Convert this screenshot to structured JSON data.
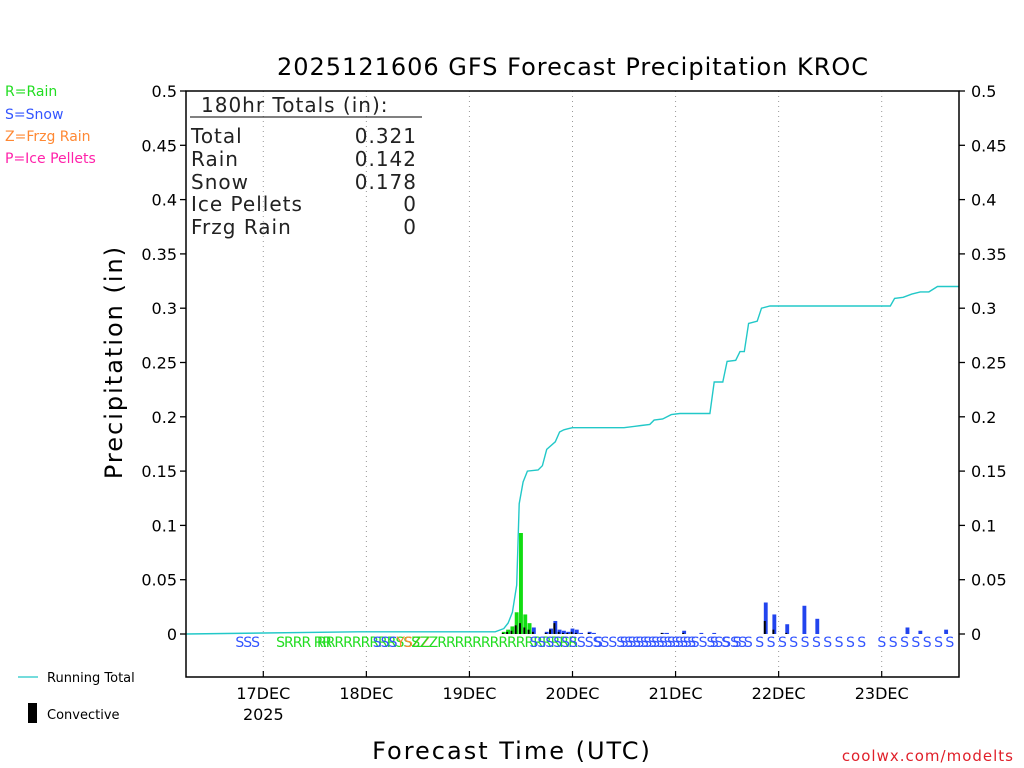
{
  "chart_data": {
    "type": "bar",
    "title": "2025121606 GFS Forecast Precipitation KROC",
    "xlabel": "Forecast Time (UTC)",
    "ylabel": "Precipitation (in)",
    "ylim": [
      0,
      0.5
    ],
    "yticks": [
      "0",
      "0.05",
      "0.1",
      "0.15",
      "0.2",
      "0.25",
      "0.3",
      "0.35",
      "0.4",
      "0.45",
      "0.5"
    ],
    "xlim_hours": [
      0,
      180
    ],
    "xticks": [
      {
        "hour": 18,
        "label": "17DEC",
        "sub": "2025"
      },
      {
        "hour": 42,
        "label": "18DEC",
        "sub": ""
      },
      {
        "hour": 66,
        "label": "19DEC",
        "sub": ""
      },
      {
        "hour": 90,
        "label": "20DEC",
        "sub": ""
      },
      {
        "hour": 114,
        "label": "21DEC",
        "sub": ""
      },
      {
        "hour": 138,
        "label": "22DEC",
        "sub": ""
      },
      {
        "hour": 162,
        "label": "23DEC",
        "sub": ""
      }
    ],
    "ptype_legend": [
      {
        "code": "R",
        "text": "R=Rain",
        "color": "#22dd22"
      },
      {
        "code": "S",
        "text": "S=Snow",
        "color": "#3355ff"
      },
      {
        "code": "Z",
        "text": "Z=Frzg Rain",
        "color": "#ff8833"
      },
      {
        "code": "P",
        "text": "P=Ice Pellets",
        "color": "#ff22aa"
      }
    ],
    "totals": {
      "heading": "180hr Totals (in):",
      "rows": [
        {
          "label": "Total",
          "value": "0.321"
        },
        {
          "label": "Rain",
          "value": "0.142"
        },
        {
          "label": "Snow",
          "value": "0.178"
        },
        {
          "label": "Ice Pellets",
          "value": "0"
        },
        {
          "label": "Frzg Rain",
          "value": "0"
        }
      ]
    },
    "legend": {
      "running": "Running Total",
      "convective": "Convective"
    },
    "credit": "coolwx.com/modelts",
    "colors": {
      "rain": "#11dd11",
      "snow": "#2244ee",
      "convective": "#000000",
      "running": "#22c8c8",
      "frzg": "#ff8833"
    },
    "ptype_rows": [
      {
        "row": 0,
        "hours": [
          11,
          12,
          13,
          22,
          33,
          35,
          36,
          38,
          39
        ],
        "codes": "SSSSRSSSS"
      },
      {
        "row": 0,
        "hours": [
          40,
          41,
          43,
          44,
          45,
          46,
          47,
          48
        ],
        "codes": "SSSSSSSS"
      },
      {
        "row": 0,
        "hours": [
          50,
          52,
          53,
          54,
          55,
          56,
          57,
          58
        ],
        "codes": "YSSZZZZZ"
      },
      {
        "row": 0,
        "hours": [
          60,
          62,
          64,
          66,
          68,
          70,
          72,
          74
        ],
        "codes": "RRRRRRRR"
      },
      {
        "row": 0,
        "hours": [
          76,
          78,
          80,
          82,
          84,
          86,
          88,
          90,
          92,
          94,
          96
        ],
        "codes": "SSSSSSSSSSS"
      },
      {
        "row": 0,
        "hours": [
          108,
          110,
          112,
          114,
          116,
          118,
          120,
          123,
          126,
          129,
          132,
          135,
          138,
          141,
          144,
          147,
          150,
          153,
          156
        ],
        "codes": "SSSSSSSSSSSSSSSSSSS"
      },
      {
        "row": 0,
        "hours": [
          162,
          165,
          168,
          171,
          174,
          177,
          180
        ],
        "codes": "SSSSSSS"
      }
    ],
    "ptype_text": [
      {
        "hour": 11.5,
        "text": "SSS",
        "color": "#3355ff"
      },
      {
        "hour": 21,
        "text": "SRRR RR",
        "color": "#22dd22"
      },
      {
        "hour": 30.5,
        "text": "RRRRRRRRRSSS",
        "color": "#22dd22"
      },
      {
        "hour": 43.5,
        "text": "SSS",
        "color": "#3355ff"
      },
      {
        "hour": 49,
        "text": "YSZZ",
        "color": "#ff8833"
      },
      {
        "hour": 52.5,
        "text": "ZZZRRRRRRRRRRRRRRRR",
        "color": "#22dd22"
      },
      {
        "hour": 80,
        "text": "SSSSSSSSSSSSSSSSSSSSS",
        "color": "#3355ff"
      },
      {
        "hour": 95,
        "text": "S",
        "color": "#3355ff"
      },
      {
        "hour": 101,
        "text": "SSSSSSSSSSSSSSSS",
        "color": "#3355ff"
      },
      {
        "hour": 122,
        "text": "S S S S S S S S S S S S S S",
        "color": "#3355ff"
      },
      {
        "hour": 161,
        "text": "S S S S S S S",
        "color": "#3355ff"
      }
    ],
    "bars": [
      {
        "hour": 74,
        "rain": 0.002,
        "snow": 0,
        "conv": 0.001
      },
      {
        "hour": 75,
        "rain": 0.004,
        "snow": 0,
        "conv": 0.002
      },
      {
        "hour": 76,
        "rain": 0.007,
        "snow": 0,
        "conv": 0.003
      },
      {
        "hour": 77,
        "rain": 0.02,
        "snow": 0,
        "conv": 0.008
      },
      {
        "hour": 78,
        "rain": 0.093,
        "snow": 0,
        "conv": 0.01
      },
      {
        "hour": 79,
        "rain": 0.018,
        "snow": 0,
        "conv": 0.006
      },
      {
        "hour": 80,
        "rain": 0.01,
        "snow": 0,
        "conv": 0.004
      },
      {
        "hour": 81,
        "rain": 0,
        "snow": 0.006,
        "conv": 0.002
      },
      {
        "hour": 84,
        "rain": 0,
        "snow": 0.002,
        "conv": 0.001
      },
      {
        "hour": 85,
        "rain": 0,
        "snow": 0.005,
        "conv": 0.004
      },
      {
        "hour": 86,
        "rain": 0,
        "snow": 0.012,
        "conv": 0.01
      },
      {
        "hour": 87,
        "rain": 0,
        "snow": 0.004,
        "conv": 0.002
      },
      {
        "hour": 88,
        "rain": 0,
        "snow": 0.003,
        "conv": 0.001
      },
      {
        "hour": 89,
        "rain": 0,
        "snow": 0.002,
        "conv": 0.001
      },
      {
        "hour": 90,
        "rain": 0,
        "snow": 0.005,
        "conv": 0.002
      },
      {
        "hour": 91,
        "rain": 0,
        "snow": 0.004,
        "conv": 0.001
      },
      {
        "hour": 92,
        "rain": 0,
        "snow": 0.001,
        "conv": 0
      },
      {
        "hour": 94,
        "rain": 0,
        "snow": 0.002,
        "conv": 0.001
      },
      {
        "hour": 95,
        "rain": 0,
        "snow": 0.001,
        "conv": 0
      },
      {
        "hour": 111,
        "rain": 0,
        "snow": 0.001,
        "conv": 0.001
      },
      {
        "hour": 112,
        "rain": 0,
        "snow": 0.001,
        "conv": 0
      },
      {
        "hour": 116,
        "rain": 0,
        "snow": 0.003,
        "conv": 0.001
      },
      {
        "hour": 120,
        "rain": 0,
        "snow": 0.001,
        "conv": 0
      },
      {
        "hour": 123,
        "rain": 0,
        "snow": 0.001,
        "conv": 0
      },
      {
        "hour": 135,
        "rain": 0,
        "snow": 0.029,
        "conv": 0.012
      },
      {
        "hour": 137,
        "rain": 0,
        "snow": 0.018,
        "conv": 0.004
      },
      {
        "hour": 140,
        "rain": 0,
        "snow": 0.009,
        "conv": 0.001
      },
      {
        "hour": 144,
        "rain": 0,
        "snow": 0.026,
        "conv": 0
      },
      {
        "hour": 147,
        "rain": 0,
        "snow": 0.014,
        "conv": 0
      },
      {
        "hour": 168,
        "rain": 0,
        "snow": 0.006,
        "conv": 0
      },
      {
        "hour": 171,
        "rain": 0,
        "snow": 0.003,
        "conv": 0
      },
      {
        "hour": 177,
        "rain": 0,
        "snow": 0.004,
        "conv": 0
      }
    ],
    "running_total": [
      [
        0,
        0
      ],
      [
        40,
        0.002
      ],
      [
        72,
        0.002
      ],
      [
        74,
        0.005
      ],
      [
        75,
        0.01
      ],
      [
        76,
        0.02
      ],
      [
        77,
        0.045
      ],
      [
        77.6,
        0.12
      ],
      [
        78.5,
        0.14
      ],
      [
        79.5,
        0.15
      ],
      [
        82,
        0.151
      ],
      [
        83,
        0.155
      ],
      [
        84,
        0.17
      ],
      [
        86,
        0.177
      ],
      [
        87,
        0.186
      ],
      [
        88,
        0.188
      ],
      [
        89,
        0.189
      ],
      [
        90,
        0.19
      ],
      [
        102,
        0.19
      ],
      [
        106,
        0.192
      ],
      [
        108,
        0.193
      ],
      [
        109,
        0.197
      ],
      [
        111,
        0.198
      ],
      [
        113,
        0.202
      ],
      [
        115,
        0.203
      ],
      [
        120,
        0.203
      ],
      [
        122,
        0.203
      ],
      [
        123,
        0.232
      ],
      [
        125,
        0.232
      ],
      [
        126,
        0.251
      ],
      [
        128,
        0.252
      ],
      [
        129,
        0.26
      ],
      [
        130,
        0.26
      ],
      [
        131,
        0.286
      ],
      [
        133,
        0.288
      ],
      [
        134,
        0.3
      ],
      [
        136,
        0.302
      ],
      [
        160,
        0.302
      ],
      [
        164,
        0.302
      ],
      [
        165,
        0.309
      ],
      [
        167,
        0.31
      ],
      [
        169,
        0.313
      ],
      [
        171,
        0.315
      ],
      [
        173,
        0.315
      ],
      [
        175,
        0.32
      ],
      [
        180,
        0.32
      ]
    ]
  }
}
